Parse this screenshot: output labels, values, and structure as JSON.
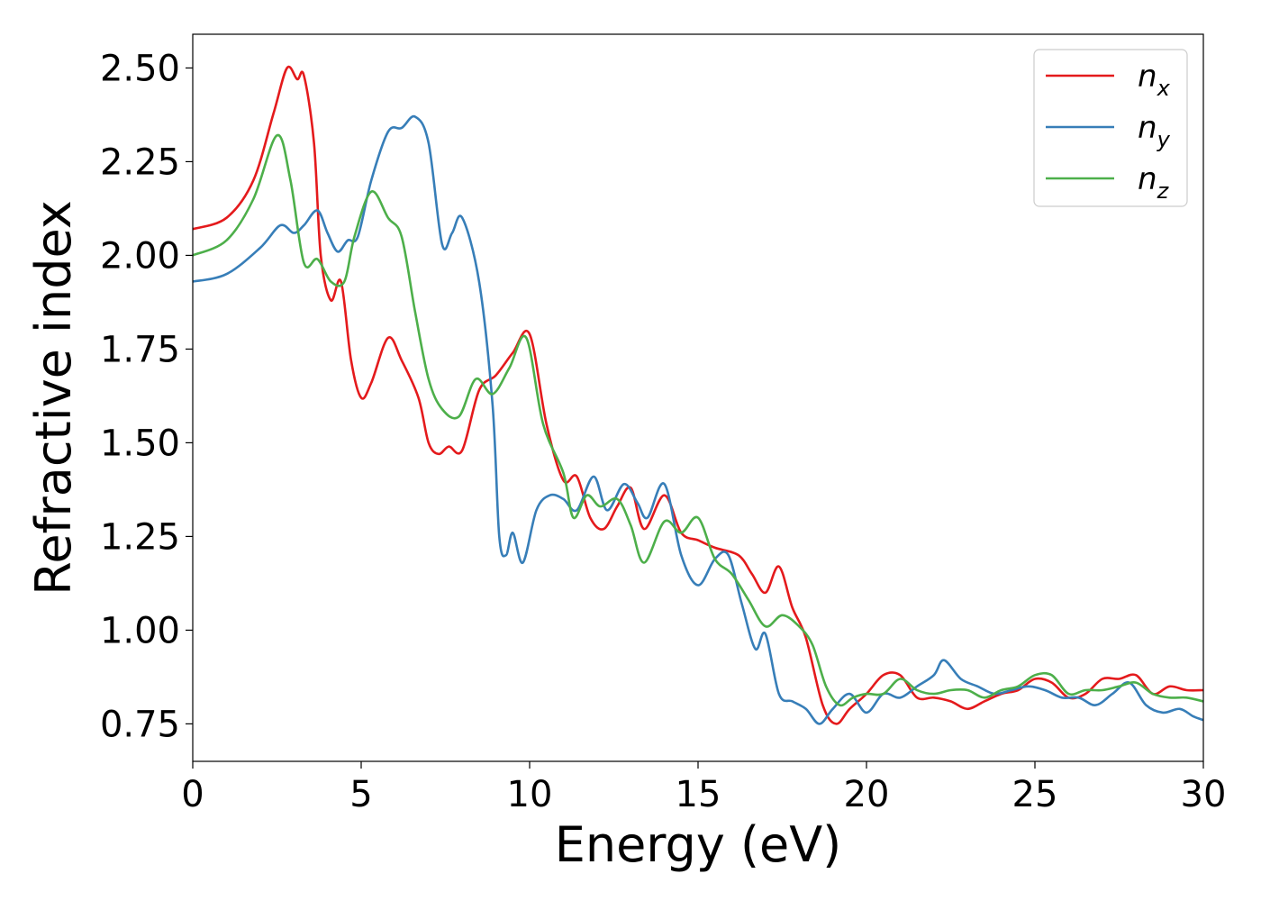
{
  "chart_data": {
    "type": "line",
    "title": "",
    "xlabel": "Energy (eV)",
    "ylabel": "Refractive index",
    "xlim": [
      0,
      30
    ],
    "ylim": [
      0.65,
      2.59
    ],
    "xticks": [
      0,
      5,
      10,
      15,
      20,
      25,
      30
    ],
    "xtick_labels": [
      "0",
      "5",
      "10",
      "15",
      "20",
      "25",
      "30"
    ],
    "yticks": [
      0.75,
      1.0,
      1.25,
      1.5,
      1.75,
      2.0,
      2.25,
      2.5
    ],
    "ytick_labels": [
      "0.75",
      "1.00",
      "1.25",
      "1.50",
      "1.75",
      "2.00",
      "2.25",
      "2.50"
    ],
    "grid": false,
    "legend_position": "top-right",
    "series": [
      {
        "name": "n",
        "subscript": "x",
        "color": "#e41a1c",
        "points": [
          [
            0,
            2.07
          ],
          [
            1,
            2.1
          ],
          [
            1.8,
            2.2
          ],
          [
            2.4,
            2.38
          ],
          [
            2.8,
            2.5
          ],
          [
            3.1,
            2.47
          ],
          [
            3.3,
            2.48
          ],
          [
            3.6,
            2.3
          ],
          [
            3.8,
            2.0
          ],
          [
            4.1,
            1.88
          ],
          [
            4.4,
            1.93
          ],
          [
            4.7,
            1.72
          ],
          [
            5.0,
            1.62
          ],
          [
            5.3,
            1.66
          ],
          [
            5.8,
            1.78
          ],
          [
            6.2,
            1.72
          ],
          [
            6.7,
            1.62
          ],
          [
            7.0,
            1.5
          ],
          [
            7.3,
            1.47
          ],
          [
            7.6,
            1.49
          ],
          [
            8.0,
            1.48
          ],
          [
            8.5,
            1.64
          ],
          [
            9.0,
            1.68
          ],
          [
            9.5,
            1.74
          ],
          [
            10.0,
            1.79
          ],
          [
            10.5,
            1.55
          ],
          [
            11.0,
            1.4
          ],
          [
            11.4,
            1.41
          ],
          [
            11.8,
            1.3
          ],
          [
            12.2,
            1.27
          ],
          [
            12.6,
            1.33
          ],
          [
            13.0,
            1.38
          ],
          [
            13.4,
            1.27
          ],
          [
            14.0,
            1.36
          ],
          [
            14.5,
            1.26
          ],
          [
            15.0,
            1.24
          ],
          [
            15.5,
            1.22
          ],
          [
            16.2,
            1.2
          ],
          [
            16.6,
            1.15
          ],
          [
            17.0,
            1.1
          ],
          [
            17.4,
            1.17
          ],
          [
            17.8,
            1.06
          ],
          [
            18.2,
            0.98
          ],
          [
            18.7,
            0.8
          ],
          [
            19.1,
            0.75
          ],
          [
            19.5,
            0.79
          ],
          [
            20.0,
            0.83
          ],
          [
            20.5,
            0.88
          ],
          [
            21.0,
            0.88
          ],
          [
            21.5,
            0.82
          ],
          [
            22.0,
            0.82
          ],
          [
            22.5,
            0.81
          ],
          [
            23.0,
            0.79
          ],
          [
            23.5,
            0.81
          ],
          [
            24.0,
            0.83
          ],
          [
            24.5,
            0.84
          ],
          [
            25.0,
            0.87
          ],
          [
            25.5,
            0.86
          ],
          [
            26.0,
            0.82
          ],
          [
            26.5,
            0.83
          ],
          [
            27.0,
            0.87
          ],
          [
            27.5,
            0.87
          ],
          [
            28.0,
            0.88
          ],
          [
            28.5,
            0.83
          ],
          [
            29.0,
            0.85
          ],
          [
            29.5,
            0.84
          ],
          [
            30.0,
            0.84
          ]
        ]
      },
      {
        "name": "n",
        "subscript": "y",
        "color": "#377eb8",
        "points": [
          [
            0,
            1.93
          ],
          [
            1,
            1.95
          ],
          [
            2,
            2.02
          ],
          [
            2.6,
            2.08
          ],
          [
            3.0,
            2.06
          ],
          [
            3.3,
            2.08
          ],
          [
            3.7,
            2.12
          ],
          [
            4.0,
            2.06
          ],
          [
            4.3,
            2.01
          ],
          [
            4.6,
            2.04
          ],
          [
            4.9,
            2.05
          ],
          [
            5.3,
            2.2
          ],
          [
            5.8,
            2.33
          ],
          [
            6.2,
            2.34
          ],
          [
            6.6,
            2.37
          ],
          [
            7.0,
            2.3
          ],
          [
            7.4,
            2.03
          ],
          [
            7.7,
            2.06
          ],
          [
            8.0,
            2.1
          ],
          [
            8.5,
            1.93
          ],
          [
            8.9,
            1.6
          ],
          [
            9.1,
            1.25
          ],
          [
            9.3,
            1.2
          ],
          [
            9.5,
            1.26
          ],
          [
            9.8,
            1.18
          ],
          [
            10.2,
            1.32
          ],
          [
            10.6,
            1.36
          ],
          [
            11.0,
            1.35
          ],
          [
            11.4,
            1.32
          ],
          [
            11.9,
            1.41
          ],
          [
            12.3,
            1.32
          ],
          [
            12.8,
            1.39
          ],
          [
            13.2,
            1.34
          ],
          [
            13.5,
            1.3
          ],
          [
            14.0,
            1.39
          ],
          [
            14.5,
            1.2
          ],
          [
            15.0,
            1.12
          ],
          [
            15.5,
            1.19
          ],
          [
            15.9,
            1.2
          ],
          [
            16.3,
            1.07
          ],
          [
            16.7,
            0.95
          ],
          [
            17.0,
            0.99
          ],
          [
            17.4,
            0.83
          ],
          [
            17.8,
            0.81
          ],
          [
            18.2,
            0.79
          ],
          [
            18.6,
            0.75
          ],
          [
            19.0,
            0.79
          ],
          [
            19.5,
            0.83
          ],
          [
            20.0,
            0.78
          ],
          [
            20.5,
            0.83
          ],
          [
            21.0,
            0.82
          ],
          [
            21.5,
            0.85
          ],
          [
            22.0,
            0.88
          ],
          [
            22.3,
            0.92
          ],
          [
            22.8,
            0.87
          ],
          [
            23.3,
            0.85
          ],
          [
            23.8,
            0.83
          ],
          [
            24.3,
            0.84
          ],
          [
            24.8,
            0.85
          ],
          [
            25.3,
            0.84
          ],
          [
            25.8,
            0.82
          ],
          [
            26.3,
            0.82
          ],
          [
            26.8,
            0.8
          ],
          [
            27.3,
            0.83
          ],
          [
            27.8,
            0.86
          ],
          [
            28.3,
            0.8
          ],
          [
            28.8,
            0.78
          ],
          [
            29.3,
            0.79
          ],
          [
            29.7,
            0.77
          ],
          [
            30.0,
            0.76
          ]
        ]
      },
      {
        "name": "n",
        "subscript": "z",
        "color": "#4daf4a",
        "points": [
          [
            0,
            2.0
          ],
          [
            1,
            2.04
          ],
          [
            1.8,
            2.15
          ],
          [
            2.5,
            2.32
          ],
          [
            2.9,
            2.2
          ],
          [
            3.3,
            1.98
          ],
          [
            3.7,
            1.99
          ],
          [
            4.1,
            1.93
          ],
          [
            4.5,
            1.93
          ],
          [
            4.8,
            2.05
          ],
          [
            5.3,
            2.17
          ],
          [
            5.8,
            2.1
          ],
          [
            6.2,
            2.05
          ],
          [
            6.6,
            1.85
          ],
          [
            7.0,
            1.67
          ],
          [
            7.4,
            1.59
          ],
          [
            7.9,
            1.57
          ],
          [
            8.4,
            1.67
          ],
          [
            8.9,
            1.63
          ],
          [
            9.4,
            1.7
          ],
          [
            9.9,
            1.78
          ],
          [
            10.4,
            1.55
          ],
          [
            11.0,
            1.42
          ],
          [
            11.3,
            1.3
          ],
          [
            11.7,
            1.36
          ],
          [
            12.1,
            1.33
          ],
          [
            12.6,
            1.35
          ],
          [
            13.0,
            1.28
          ],
          [
            13.4,
            1.18
          ],
          [
            14.0,
            1.29
          ],
          [
            14.5,
            1.26
          ],
          [
            15.0,
            1.3
          ],
          [
            15.5,
            1.19
          ],
          [
            16.0,
            1.15
          ],
          [
            16.5,
            1.08
          ],
          [
            17.0,
            1.01
          ],
          [
            17.5,
            1.04
          ],
          [
            18.0,
            1.01
          ],
          [
            18.4,
            0.96
          ],
          [
            18.8,
            0.85
          ],
          [
            19.2,
            0.8
          ],
          [
            19.6,
            0.82
          ],
          [
            20.0,
            0.83
          ],
          [
            20.5,
            0.83
          ],
          [
            21.0,
            0.87
          ],
          [
            21.5,
            0.84
          ],
          [
            22.0,
            0.83
          ],
          [
            22.5,
            0.84
          ],
          [
            23.0,
            0.84
          ],
          [
            23.5,
            0.82
          ],
          [
            24.0,
            0.84
          ],
          [
            24.5,
            0.85
          ],
          [
            25.0,
            0.88
          ],
          [
            25.5,
            0.88
          ],
          [
            26.0,
            0.83
          ],
          [
            26.5,
            0.84
          ],
          [
            27.0,
            0.84
          ],
          [
            27.5,
            0.85
          ],
          [
            28.0,
            0.86
          ],
          [
            28.5,
            0.83
          ],
          [
            29.0,
            0.82
          ],
          [
            29.5,
            0.82
          ],
          [
            30.0,
            0.81
          ]
        ]
      }
    ]
  }
}
